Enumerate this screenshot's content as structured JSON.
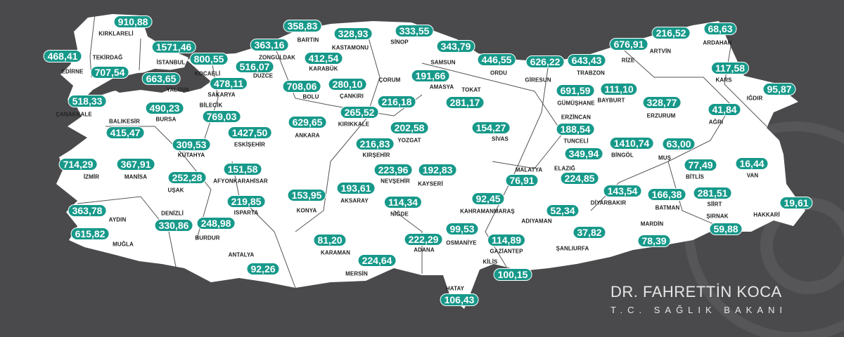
{
  "colors": {
    "background": "#4a4a4c",
    "land": "#ffffff",
    "badge": "#17998a",
    "border": "#555555"
  },
  "signature": {
    "name": "DR. FAHRETTİN KOCA",
    "title": "T.C. SAĞLIK BAKANI"
  },
  "provinces": [
    {
      "name": "KIRKLARELİ",
      "value": "910,88"
    },
    {
      "name": "EDİRNE",
      "value": "468,41"
    },
    {
      "name": "TEKİRDAĞ",
      "value": "707,54"
    },
    {
      "name": "İSTANBUL",
      "value": "1571,46"
    },
    {
      "name": "KOCAELİ",
      "value": "800,55"
    },
    {
      "name": "YALOVA",
      "value": "663,65"
    },
    {
      "name": "DÜZCE",
      "value": "516,07"
    },
    {
      "name": "SAKARYA",
      "value": "478,11"
    },
    {
      "name": "ZONGULDAK",
      "value": "363,16"
    },
    {
      "name": "BARTIN",
      "value": "358,83"
    },
    {
      "name": "KARABÜK",
      "value": "412,54"
    },
    {
      "name": "KASTAMONU",
      "value": "328,93"
    },
    {
      "name": "SİNOP",
      "value": "333,55"
    },
    {
      "name": "SAMSUN",
      "value": "343,79"
    },
    {
      "name": "ORDU",
      "value": "446,55"
    },
    {
      "name": "GİRESUN",
      "value": "626,22"
    },
    {
      "name": "TRABZON",
      "value": "643,43"
    },
    {
      "name": "RİZE",
      "value": "676,91"
    },
    {
      "name": "ARTVİN",
      "value": "216,52"
    },
    {
      "name": "ARDAHAN",
      "value": "68,63"
    },
    {
      "name": "KARS",
      "value": "117,58"
    },
    {
      "name": "IĞDIR",
      "value": "95,87"
    },
    {
      "name": "AĞRI",
      "value": "41,84"
    },
    {
      "name": "ERZURUM",
      "value": "328,77"
    },
    {
      "name": "BAYBURT",
      "value": "111,10"
    },
    {
      "name": "GÜMÜŞHANE",
      "value": "691,59"
    },
    {
      "name": "ERZİNCAN",
      "value": "188,54"
    },
    {
      "name": "TUNCELİ",
      "value": "349,94"
    },
    {
      "name": "ELAZIĞ",
      "value": "224,85"
    },
    {
      "name": "BİNGÖL",
      "value": "1410,74"
    },
    {
      "name": "MUŞ",
      "value": "63,00"
    },
    {
      "name": "BİTLİS",
      "value": "77,49"
    },
    {
      "name": "VAN",
      "value": "16,44"
    },
    {
      "name": "HAKKARİ",
      "value": "19,61"
    },
    {
      "name": "ŞIRNAK",
      "value": "59,88"
    },
    {
      "name": "SİİRT",
      "value": "281,51"
    },
    {
      "name": "BATMAN",
      "value": "166,38"
    },
    {
      "name": "MARDİN",
      "value": "78,39"
    },
    {
      "name": "DİYARBAKIR",
      "value": "143,54"
    },
    {
      "name": "ŞANLIURFA",
      "value": "37,82"
    },
    {
      "name": "ADIYAMAN",
      "value": "52,34"
    },
    {
      "name": "MALATYA",
      "value": "76,91"
    },
    {
      "name": "KAHRAMANMARAŞ",
      "value": "92,45"
    },
    {
      "name": "OSMANİYE",
      "value": "99,53"
    },
    {
      "name": "GAZİANTEP",
      "value": "114,89"
    },
    {
      "name": "KİLİS",
      "value": "100,15"
    },
    {
      "name": "HATAY",
      "value": "106,43"
    },
    {
      "name": "ADANA",
      "value": "222,29"
    },
    {
      "name": "MERSİN",
      "value": "224,64"
    },
    {
      "name": "KARAMAN",
      "value": "81,20"
    },
    {
      "name": "NİĞDE",
      "value": "114,34"
    },
    {
      "name": "AKSARAY",
      "value": "193,61"
    },
    {
      "name": "NEVŞEHİR",
      "value": "223,96"
    },
    {
      "name": "KAYSERİ",
      "value": "192,83"
    },
    {
      "name": "KIRŞEHİR",
      "value": "216,83"
    },
    {
      "name": "YOZGAT",
      "value": "202,58"
    },
    {
      "name": "SİVAS",
      "value": "154,27"
    },
    {
      "name": "KIRIKKALE",
      "value": "265,52"
    },
    {
      "name": "ÇORUM",
      "value": "216,18"
    },
    {
      "name": "ÇANKIRI",
      "value": "280,10"
    },
    {
      "name": "AMASYA",
      "value": "191,66"
    },
    {
      "name": "TOKAT",
      "value": "281,17"
    },
    {
      "name": "ANKARA",
      "value": "629,65"
    },
    {
      "name": "BOLU",
      "value": "708,06"
    },
    {
      "name": "BİLECİK",
      "value": "769,03"
    },
    {
      "name": "ESKİŞEHİR",
      "value": "1427,50"
    },
    {
      "name": "BURSA",
      "value": "490,23"
    },
    {
      "name": "ÇANAKKALE",
      "value": "518,33"
    },
    {
      "name": "BALIKESİR",
      "value": "415,47"
    },
    {
      "name": "KÜTAHYA",
      "value": "309,53"
    },
    {
      "name": "İZMİR",
      "value": "714,29"
    },
    {
      "name": "MANİSA",
      "value": "367,91"
    },
    {
      "name": "UŞAK",
      "value": "252,28"
    },
    {
      "name": "AFYONKARAHİSAR",
      "value": "151,58"
    },
    {
      "name": "AYDIN",
      "value": "363,78"
    },
    {
      "name": "MUĞLA",
      "value": "615,82"
    },
    {
      "name": "DENİZLİ",
      "value": "330,86"
    },
    {
      "name": "BURDUR",
      "value": "248,98"
    },
    {
      "name": "ISPARTA",
      "value": "219,85"
    },
    {
      "name": "ANTALYA",
      "value": "92,26"
    },
    {
      "name": "KONYA",
      "value": "153,95"
    }
  ]
}
